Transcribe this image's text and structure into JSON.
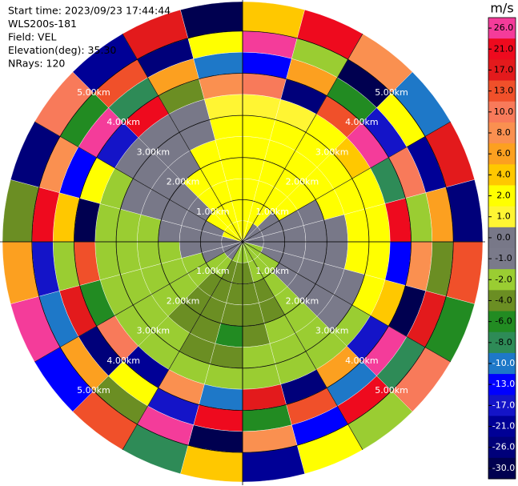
{
  "chart_data": {
    "type": "ppi",
    "header": [
      "Start time: 2023/09/23 17:44:44",
      "WLS200s-181",
      "Field: VEL",
      "Elevation(deg): 35.30",
      "NRays: 120"
    ],
    "colorbar": {
      "title": "m/s",
      "ticks": [
        {
          "value": 26,
          "label": "26.0"
        },
        {
          "value": 21,
          "label": "21.0"
        },
        {
          "value": 17,
          "label": "17.0"
        },
        {
          "value": 13,
          "label": "13.0"
        },
        {
          "value": 10,
          "label": "10.0"
        },
        {
          "value": 8,
          "label": "8.0"
        },
        {
          "value": 6,
          "label": "6.0"
        },
        {
          "value": 4,
          "label": "4.0"
        },
        {
          "value": 2,
          "label": "2.0"
        },
        {
          "value": 1,
          "label": "1.0"
        },
        {
          "value": 0,
          "label": "0.0"
        },
        {
          "value": -1,
          "label": "-1.0"
        },
        {
          "value": -2,
          "label": "-2.0"
        },
        {
          "value": -4,
          "label": "-4.0"
        },
        {
          "value": -6,
          "label": "-6.0"
        },
        {
          "value": -8,
          "label": "-8.0"
        },
        {
          "value": -10,
          "label": "-10.0"
        },
        {
          "value": -13,
          "label": "-13.0"
        },
        {
          "value": -17,
          "label": "-17.0"
        },
        {
          "value": -21,
          "label": "-21.0"
        },
        {
          "value": -26,
          "label": "-26.0"
        },
        {
          "value": -30,
          "label": "-30.0"
        }
      ],
      "colors": [
        "#f43c9a",
        "#ee0a1e",
        "#e31a1c",
        "#f0502a",
        "#f87a5a",
        "#fa9050",
        "#fca020",
        "#ffc800",
        "#ffff00",
        "#fff533",
        "#787888",
        "#7a7a8a",
        "#9acd32",
        "#6b8e23",
        "#228b22",
        "#2e8b57",
        "#1e78c8",
        "#0000ff",
        "#1414c8",
        "#000096",
        "#00007a",
        "#000050"
      ]
    },
    "range_rings": [
      {
        "km": 1,
        "label": "1.00km"
      },
      {
        "km": 2,
        "label": "2.00km"
      },
      {
        "km": 3,
        "label": "3.00km"
      },
      {
        "km": 4,
        "label": "4.00km"
      },
      {
        "km": 5,
        "label": "5.00km"
      }
    ],
    "field": {
      "gates_km": [
        0,
        0.5,
        1,
        1.5,
        2,
        2.5,
        3,
        3.5,
        4,
        4.5,
        5,
        5.7
      ],
      "values": [
        [
          2,
          2,
          2,
          2,
          2,
          2,
          1,
          10,
          -13,
          26,
          4
        ],
        [
          2,
          2,
          2,
          2,
          2,
          2,
          1,
          -26,
          6,
          -2,
          21
        ],
        [
          0,
          2,
          2,
          2,
          2,
          2,
          2,
          13,
          -6,
          -30,
          8
        ],
        [
          0,
          0,
          2,
          2,
          2,
          2,
          4,
          26,
          -17,
          2,
          -10
        ],
        [
          0,
          0,
          0,
          0,
          2,
          2,
          2,
          -8,
          10,
          -21,
          17
        ],
        [
          0,
          0,
          0,
          0,
          0,
          2,
          2,
          21,
          -2,
          6,
          -26
        ],
        [
          -1,
          0,
          0,
          0,
          0,
          2,
          2,
          -13,
          8,
          -4,
          13
        ],
        [
          -2,
          -1,
          0,
          0,
          0,
          0,
          2,
          4,
          -30,
          17,
          -6
        ],
        [
          -2,
          -2,
          -1,
          0,
          0,
          -1,
          -2,
          -17,
          26,
          -8,
          10
        ],
        [
          -2,
          -2,
          -2,
          -2,
          -2,
          -2,
          -2,
          6,
          -10,
          21,
          -2
        ],
        [
          -2,
          -2,
          -4,
          -4,
          -2,
          -2,
          -2,
          -26,
          13,
          -13,
          2
        ],
        [
          -2,
          -4,
          -4,
          -4,
          -4,
          -2,
          -2,
          17,
          -6,
          8,
          -21
        ],
        [
          -2,
          -4,
          -4,
          -4,
          -6,
          -4,
          -2,
          -10,
          21,
          -30,
          4
        ],
        [
          -2,
          -4,
          -4,
          -4,
          -4,
          -4,
          -2,
          8,
          -17,
          26,
          -8
        ],
        [
          -1,
          -2,
          -4,
          -4,
          -4,
          -2,
          -2,
          -21,
          2,
          -4,
          13
        ],
        [
          0,
          -2,
          -2,
          -2,
          -2,
          -2,
          -2,
          10,
          -26,
          6,
          -13
        ],
        [
          0,
          0,
          -2,
          -2,
          -2,
          -2,
          -2,
          -6,
          17,
          -10,
          26
        ],
        [
          0,
          0,
          0,
          -2,
          -2,
          -2,
          -2,
          13,
          -2,
          -17,
          6
        ],
        [
          0,
          0,
          0,
          0,
          -2,
          -2,
          -2,
          -30,
          4,
          21,
          -4
        ],
        [
          2,
          0,
          0,
          0,
          0,
          0,
          -2,
          2,
          -13,
          8,
          -26
        ],
        [
          2,
          2,
          0,
          0,
          0,
          0,
          0,
          -17,
          26,
          -6,
          10
        ],
        [
          2,
          2,
          2,
          2,
          0,
          0,
          0,
          21,
          -8,
          13,
          -21
        ],
        [
          2,
          2,
          2,
          2,
          2,
          0,
          0,
          -4,
          6,
          -26,
          17
        ],
        [
          2,
          2,
          2,
          2,
          2,
          2,
          1,
          8,
          -10,
          2,
          -30
        ]
      ]
    }
  }
}
